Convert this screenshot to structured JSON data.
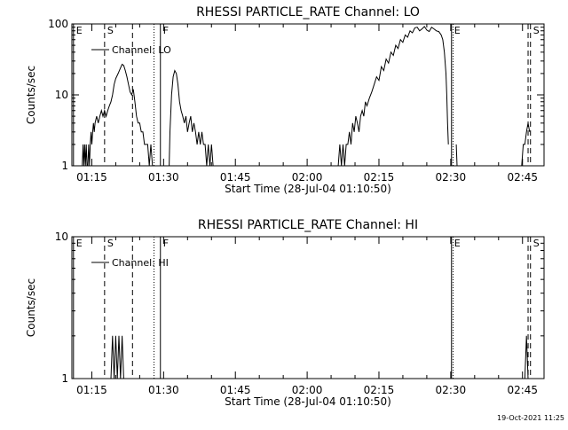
{
  "chart_data": [
    {
      "type": "line",
      "title": "RHESSI PARTICLE_RATE Channel: LO",
      "xlabel": "Start Time (28-Jul-04 01:10:50)",
      "ylabel": "Counts/sec",
      "yscale": "log",
      "ylim": [
        1,
        100
      ],
      "xlim": [
        "01:10:50",
        "02:49:30"
      ],
      "x_ticks": [
        "01:15",
        "01:30",
        "01:45",
        "02:00",
        "02:15",
        "02:30",
        "02:45"
      ],
      "y_ticks": [
        "1",
        "10",
        "100"
      ],
      "legend": {
        "label": "Channel: LO",
        "position": "top-left"
      },
      "grid": false,
      "series": [
        {
          "name": "Channel: LO",
          "segments": [
            {
              "x": [
                "01:13:00",
                "01:13:10",
                "01:13:20",
                "01:13:30",
                "01:13:40",
                "01:13:50",
                "01:14:00",
                "01:14:10",
                "01:14:20",
                "01:14:30",
                "01:14:40",
                "01:14:50",
                "01:15:00",
                "01:15:10",
                "01:15:20",
                "01:15:30",
                "01:15:40",
                "01:16:00",
                "01:16:20",
                "01:16:40",
                "01:17:00",
                "01:17:20",
                "01:17:40",
                "01:18:00",
                "01:18:20",
                "01:18:40",
                "01:19:00",
                "01:19:20",
                "01:19:40",
                "01:20:00",
                "01:20:30",
                "01:21:00",
                "01:21:20",
                "01:21:40",
                "01:22:00",
                "01:22:20",
                "01:22:40",
                "01:23:00",
                "01:23:20",
                "01:23:40",
                "01:24:00",
                "01:24:20",
                "01:24:40",
                "01:25:00",
                "01:25:20",
                "01:25:40",
                "01:26:00",
                "01:26:20",
                "01:26:40",
                "01:27:00",
                "01:27:20",
                "01:27:40",
                "01:28:00",
                "01:28:20"
              ],
              "y": [
                1,
                2,
                1,
                2,
                1,
                2,
                1,
                1,
                2,
                1,
                2,
                3,
                2,
                3,
                4,
                3,
                4,
                5,
                4,
                5,
                6,
                5,
                6,
                5,
                6,
                7,
                8,
                10,
                14,
                17,
                20,
                24,
                27,
                26,
                22,
                18,
                14,
                11,
                10,
                12,
                8,
                5,
                4,
                4,
                3,
                3,
                2,
                2,
                2,
                1,
                2,
                1,
                1,
                1
              ]
            },
            {
              "x": [
                "01:31:10",
                "01:31:20",
                "01:31:40",
                "01:32:00",
                "01:32:20",
                "01:32:40",
                "01:33:00",
                "01:33:20",
                "01:33:40",
                "01:34:00",
                "01:34:20",
                "01:34:40",
                "01:35:00",
                "01:35:20",
                "01:35:40",
                "01:36:00",
                "01:36:20",
                "01:36:40",
                "01:37:00",
                "01:37:20",
                "01:37:40",
                "01:38:00",
                "01:38:20",
                "01:38:40",
                "01:39:00",
                "01:39:20",
                "01:39:40",
                "01:40:00",
                "01:40:20",
                "01:40:40",
                "01:41:00",
                "01:41:20"
              ],
              "y": [
                1,
                3,
                10,
                18,
                22,
                20,
                14,
                8,
                6,
                5,
                4,
                5,
                3,
                4,
                5,
                3,
                4,
                3,
                2,
                3,
                2,
                3,
                2,
                2,
                1,
                2,
                1,
                2,
                1,
                1,
                1,
                1
              ]
            },
            {
              "x": [
                "02:06:30",
                "02:06:50",
                "02:07:10",
                "02:07:30",
                "02:07:50",
                "02:08:10",
                "02:08:30",
                "02:08:50",
                "02:09:10",
                "02:09:30",
                "02:09:50",
                "02:10:10",
                "02:10:30",
                "02:10:50",
                "02:11:10",
                "02:11:30",
                "02:11:50",
                "02:12:10",
                "02:12:30",
                "02:13:00",
                "02:13:30",
                "02:14:00",
                "02:14:30",
                "02:15:00",
                "02:15:30",
                "02:16:00",
                "02:16:30",
                "02:17:00",
                "02:17:30",
                "02:18:00",
                "02:18:30",
                "02:19:00",
                "02:19:30",
                "02:20:00",
                "02:20:30",
                "02:21:00",
                "02:21:30",
                "02:22:00",
                "02:22:30",
                "02:23:00",
                "02:23:30",
                "02:24:00",
                "02:24:30",
                "02:25:00",
                "02:25:30",
                "02:26:00",
                "02:26:30",
                "02:27:00",
                "02:27:30",
                "02:28:00",
                "02:28:20",
                "02:28:40",
                "02:29:00",
                "02:29:10",
                "02:29:20",
                "02:29:30"
              ],
              "y": [
                1,
                2,
                1,
                2,
                1,
                2,
                2,
                3,
                2,
                4,
                3,
                5,
                4,
                3,
                5,
                6,
                5,
                8,
                7,
                9,
                11,
                14,
                18,
                16,
                25,
                22,
                32,
                28,
                40,
                36,
                50,
                45,
                60,
                55,
                70,
                65,
                80,
                75,
                88,
                90,
                80,
                85,
                92,
                82,
                78,
                90,
                85,
                80,
                78,
                70,
                60,
                40,
                20,
                10,
                4,
                2
              ]
            },
            {
              "x": [
                "02:31:10",
                "02:31:20",
                "02:31:30"
              ],
              "y": [
                2,
                1,
                1
              ]
            },
            {
              "x": [
                "02:44:30",
                "02:44:50",
                "02:45:10",
                "02:45:30",
                "02:45:50",
                "02:46:10",
                "02:46:30"
              ],
              "y": [
                1,
                1,
                2,
                2,
                3,
                4,
                3
              ]
            }
          ]
        }
      ],
      "markers": [
        {
          "label": "E",
          "time": "01:11:10",
          "style": "solid"
        },
        {
          "label": "S",
          "time": "01:17:40",
          "style": "dashed"
        },
        {
          "label": "",
          "time": "01:23:30",
          "style": "dashed"
        },
        {
          "label": "",
          "time": "01:28:00",
          "style": "dotted"
        },
        {
          "label": "F",
          "time": "01:29:20",
          "style": "solid"
        },
        {
          "label": "E",
          "time": "02:30:10",
          "style": "solid"
        },
        {
          "label": "",
          "time": "02:30:30",
          "style": "dotted"
        },
        {
          "label": "",
          "time": "02:46:10",
          "style": "dashed"
        },
        {
          "label": "S",
          "time": "02:46:40",
          "style": "dashed"
        }
      ]
    },
    {
      "type": "line",
      "title": "RHESSI PARTICLE_RATE Channel: HI",
      "xlabel": "Start Time (28-Jul-04 01:10:50)",
      "ylabel": "Counts/sec",
      "yscale": "log",
      "ylim": [
        1,
        10
      ],
      "xlim": [
        "01:10:50",
        "02:49:30"
      ],
      "x_ticks": [
        "01:15",
        "01:30",
        "01:45",
        "02:00",
        "02:15",
        "02:30",
        "02:45"
      ],
      "y_ticks": [
        "1",
        "10"
      ],
      "legend": {
        "label": "Channel: HI",
        "position": "top-left"
      },
      "grid": false,
      "series": [
        {
          "name": "Channel: HI",
          "segments": [
            {
              "x": [
                "01:19:00",
                "01:19:20",
                "01:19:40",
                "01:20:00",
                "01:20:20",
                "01:20:40",
                "01:21:00",
                "01:21:20",
                "01:21:40",
                "01:22:00"
              ],
              "y": [
                1,
                2,
                1,
                2,
                1,
                2,
                1,
                2,
                1,
                1
              ]
            },
            {
              "x": [
                "02:45:30",
                "02:45:50",
                "02:46:10",
                "02:46:30"
              ],
              "y": [
                1,
                2,
                1,
                1
              ]
            }
          ]
        }
      ],
      "markers": [
        {
          "label": "E",
          "time": "01:11:10",
          "style": "solid"
        },
        {
          "label": "S",
          "time": "01:17:40",
          "style": "dashed"
        },
        {
          "label": "",
          "time": "01:23:30",
          "style": "dashed"
        },
        {
          "label": "",
          "time": "01:28:00",
          "style": "dotted"
        },
        {
          "label": "F",
          "time": "01:29:20",
          "style": "solid"
        },
        {
          "label": "E",
          "time": "02:30:10",
          "style": "solid"
        },
        {
          "label": "",
          "time": "02:30:30",
          "style": "dotted"
        },
        {
          "label": "",
          "time": "02:46:10",
          "style": "dashed"
        },
        {
          "label": "S",
          "time": "02:46:40",
          "style": "dashed"
        }
      ]
    }
  ],
  "footer": {
    "timestamp": "19-Oct-2021 11:25"
  }
}
